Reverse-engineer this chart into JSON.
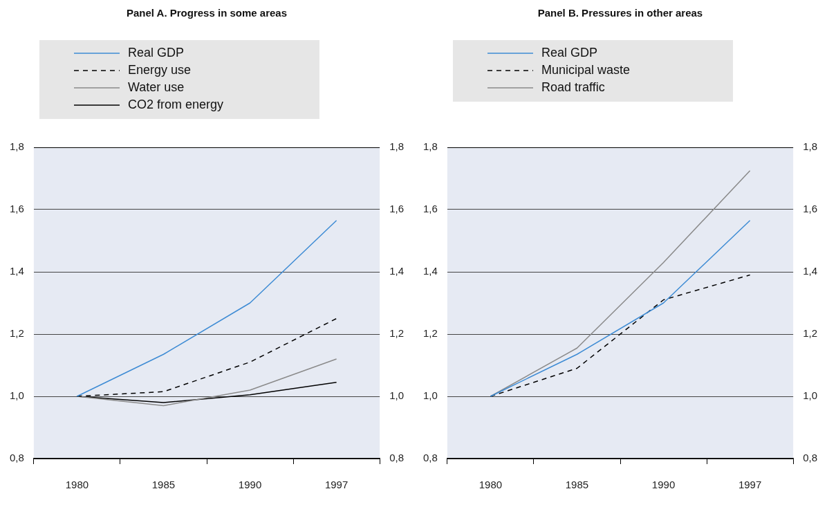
{
  "chart_data": [
    {
      "type": "line",
      "title": "Panel A. Progress in some areas",
      "categories": [
        "1980",
        "1985",
        "1990",
        "1997"
      ],
      "series": [
        {
          "name": "Real GDP",
          "color": "#3d8bd4",
          "line_style": "solid",
          "values": [
            1.0,
            1.135,
            1.3,
            1.565
          ]
        },
        {
          "name": "Energy use",
          "color": "#000000",
          "line_style": "dashed",
          "values": [
            1.0,
            1.015,
            1.11,
            1.25
          ]
        },
        {
          "name": "Water use",
          "color": "#8a8a8a",
          "line_style": "solid",
          "values": [
            1.0,
            0.97,
            1.02,
            1.12
          ]
        },
        {
          "name": "CO2 from energy",
          "color": "#000000",
          "line_style": "solid",
          "values": [
            1.0,
            0.98,
            1.005,
            1.045
          ]
        }
      ],
      "ylim": [
        0.8,
        1.8
      ],
      "yticks": [
        {
          "value": 0.8,
          "label": "0,8"
        },
        {
          "value": 1.0,
          "label": "1,0"
        },
        {
          "value": 1.2,
          "label": "1,2"
        },
        {
          "value": 1.4,
          "label": "1,4"
        },
        {
          "value": 1.6,
          "label": "1,6"
        },
        {
          "value": 1.8,
          "label": "1,8"
        }
      ],
      "y2lim": [
        0.8,
        1.8
      ],
      "y2ticks": [
        {
          "value": 0.8,
          "label": "0,8"
        },
        {
          "value": 1.0,
          "label": "1,0"
        },
        {
          "value": 1.2,
          "label": "1,2"
        },
        {
          "value": 1.4,
          "label": "1,4"
        },
        {
          "value": 1.6,
          "label": "1,6"
        },
        {
          "value": 1.8,
          "label": "1,8"
        }
      ],
      "grid": "y",
      "legend": "top",
      "marker": "none"
    },
    {
      "type": "line",
      "title": "Panel B. Pressures in other areas",
      "categories": [
        "1980",
        "1985",
        "1990",
        "1997"
      ],
      "series": [
        {
          "name": "Real GDP",
          "color": "#3d8bd4",
          "line_style": "solid",
          "values": [
            1.0,
            1.135,
            1.3,
            1.565
          ]
        },
        {
          "name": "Municipal waste",
          "color": "#000000",
          "line_style": "dashed",
          "values": [
            1.0,
            1.09,
            1.31,
            1.39
          ]
        },
        {
          "name": "Road traffic",
          "color": "#8a8a8a",
          "line_style": "solid",
          "values": [
            1.0,
            1.155,
            1.43,
            1.725
          ]
        }
      ],
      "ylim": [
        0.8,
        1.8
      ],
      "yticks": [
        {
          "value": 0.8,
          "label": "0,8"
        },
        {
          "value": 1.0,
          "label": "1,0"
        },
        {
          "value": 1.2,
          "label": "1,2"
        },
        {
          "value": 1.4,
          "label": "1,4"
        },
        {
          "value": 1.6,
          "label": "1,6"
        },
        {
          "value": 1.8,
          "label": "1,8"
        }
      ],
      "y2lim": [
        0.8,
        1.8
      ],
      "y2ticks": [
        {
          "value": 0.8,
          "label": "0,8"
        },
        {
          "value": 1.0,
          "label": "1,0"
        },
        {
          "value": 1.2,
          "label": "1,2"
        },
        {
          "value": 1.4,
          "label": "1,4"
        },
        {
          "value": 1.6,
          "label": "1,6"
        },
        {
          "value": 1.8,
          "label": "1,8"
        }
      ],
      "grid": "y",
      "legend": "top",
      "marker": "none"
    }
  ]
}
